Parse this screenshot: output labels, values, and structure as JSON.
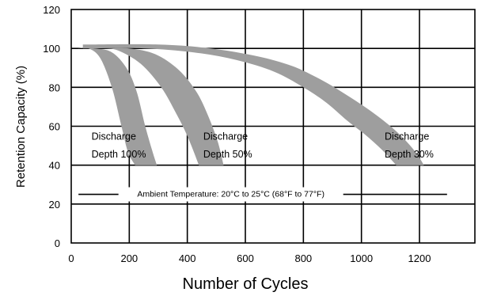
{
  "chart_data": {
    "type": "area",
    "title": "",
    "xlabel": "Number of Cycles",
    "ylabel": "Retention Capacity (%)",
    "xlim": [
      0,
      1400
    ],
    "ylim": [
      0,
      120
    ],
    "x_ticks": [
      0,
      200,
      400,
      600,
      800,
      1000,
      1200
    ],
    "y_ticks": [
      0,
      20,
      40,
      60,
      80,
      100,
      120
    ],
    "grid": true,
    "band_color": "#9e9e9e",
    "series": [
      {
        "annotation_line1": "Discharge",
        "annotation_line2": "Depth 100%",
        "lower_edge": [
          [
            20,
            100
          ],
          [
            60,
            100
          ],
          [
            100,
            95
          ],
          [
            140,
            80
          ],
          [
            170,
            62
          ],
          [
            195,
            47
          ],
          [
            220,
            40
          ]
        ],
        "upper_edge": [
          [
            20,
            100
          ],
          [
            80,
            100
          ],
          [
            140,
            98
          ],
          [
            190,
            90
          ],
          [
            225,
            78
          ],
          [
            255,
            60
          ],
          [
            280,
            47
          ],
          [
            295,
            40
          ]
        ]
      },
      {
        "annotation_line1": "Discharge",
        "annotation_line2": "Depth 50%",
        "lower_edge": [
          [
            100,
            100
          ],
          [
            160,
            99
          ],
          [
            240,
            92
          ],
          [
            310,
            80
          ],
          [
            360,
            67
          ],
          [
            400,
            55
          ],
          [
            440,
            40
          ]
        ],
        "upper_edge": [
          [
            100,
            100
          ],
          [
            200,
            100
          ],
          [
            290,
            97
          ],
          [
            370,
            89
          ],
          [
            430,
            78
          ],
          [
            470,
            66
          ],
          [
            505,
            52
          ],
          [
            525,
            40
          ]
        ]
      },
      {
        "annotation_line1": "Discharge",
        "annotation_line2": "Depth 30%",
        "lower_edge": [
          [
            40,
            100
          ],
          [
            250,
            100
          ],
          [
            420,
            98
          ],
          [
            570,
            94
          ],
          [
            700,
            88
          ],
          [
            800,
            80
          ],
          [
            880,
            72
          ],
          [
            950,
            63
          ],
          [
            1010,
            56
          ],
          [
            1070,
            48
          ],
          [
            1120,
            40
          ]
        ],
        "upper_edge": [
          [
            40,
            102
          ],
          [
            300,
            102
          ],
          [
            480,
            100
          ],
          [
            640,
            96
          ],
          [
            760,
            91
          ],
          [
            860,
            84
          ],
          [
            950,
            76
          ],
          [
            1030,
            68
          ],
          [
            1100,
            60
          ],
          [
            1150,
            53
          ],
          [
            1190,
            46
          ],
          [
            1215,
            40
          ]
        ]
      }
    ],
    "ambient_label": "Ambient Temperature: 20°C to 25°C (68°F to 77°F)",
    "ambient_level": 25
  }
}
